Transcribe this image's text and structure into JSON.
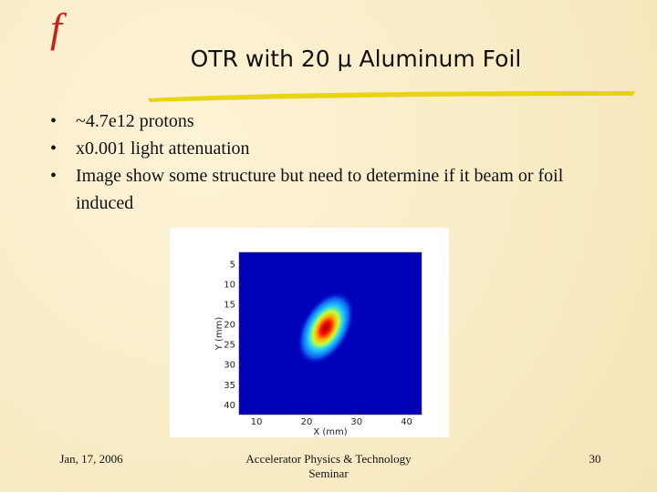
{
  "header": {
    "logo": "f",
    "title": "OTR with 20 μ Aluminum Foil"
  },
  "bullets": [
    "~4.7e12 protons",
    "x0.001 light attenuation",
    "Image show some structure but need to determine if it beam or foil induced"
  ],
  "chart_data": {
    "type": "heatmap",
    "xlabel": "X (mm)",
    "ylabel": "Y (mm)",
    "xlim": [
      6.5,
      43
    ],
    "ylim": [
      2,
      42.3
    ],
    "y_inverted": true,
    "xticks": [
      10,
      20,
      30,
      40
    ],
    "yticks": [
      5,
      10,
      15,
      20,
      25,
      30,
      35,
      40
    ]
  },
  "footer": {
    "date": "Jan, 17, 2006",
    "center": "Accelerator Physics & Technology Seminar",
    "page": "30"
  }
}
